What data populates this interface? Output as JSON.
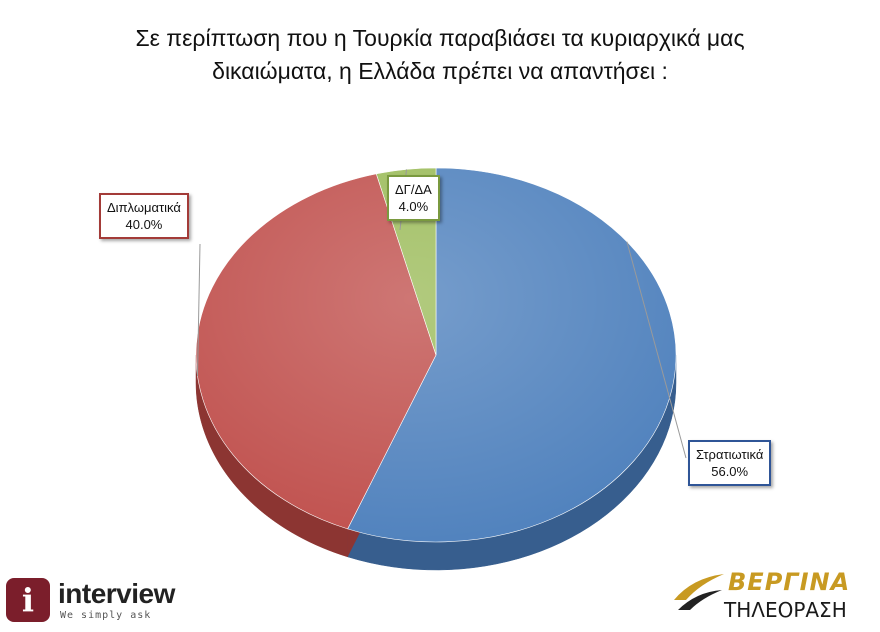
{
  "title": {
    "line1": "Σε περίπτωση  που η Τουρκία παραβιάσει τα κυριαρχικά μας",
    "line2": "δικαιώματα, η Ελλάδα πρέπει να απαντήσει :"
  },
  "chart_data": {
    "type": "pie",
    "title": "Σε περίπτωση  που η Τουρκία παραβιάσει τα κυριαρχικά μας δικαιώματα, η Ελλάδα πρέπει να απαντήσει :",
    "slices": [
      {
        "label": "Στρατιωτικά",
        "value": 56.0,
        "display": "56.0%",
        "color": "#4f81bd",
        "side": "#375e8e",
        "border": "#2f5597"
      },
      {
        "label": "Διπλωματικά",
        "value": 40.0,
        "display": "40.0%",
        "color": "#c0504d",
        "side": "#8c3532",
        "border": "#a33b38"
      },
      {
        "label": "ΔΓ/ΔΑ",
        "value": 4.0,
        "display": "4.0%",
        "color": "#9bbb59",
        "side": "#6f8c3c",
        "border": "#7a9a3f"
      }
    ],
    "style": "3d-pie"
  },
  "logos": {
    "left": {
      "icon": "i",
      "name": "interview",
      "tagline": "We simply ask"
    },
    "right": {
      "name": "ΒΕΡΓΙΝΑ",
      "sub": "ΤΗΛΕΟΡΑΣΗ"
    }
  }
}
